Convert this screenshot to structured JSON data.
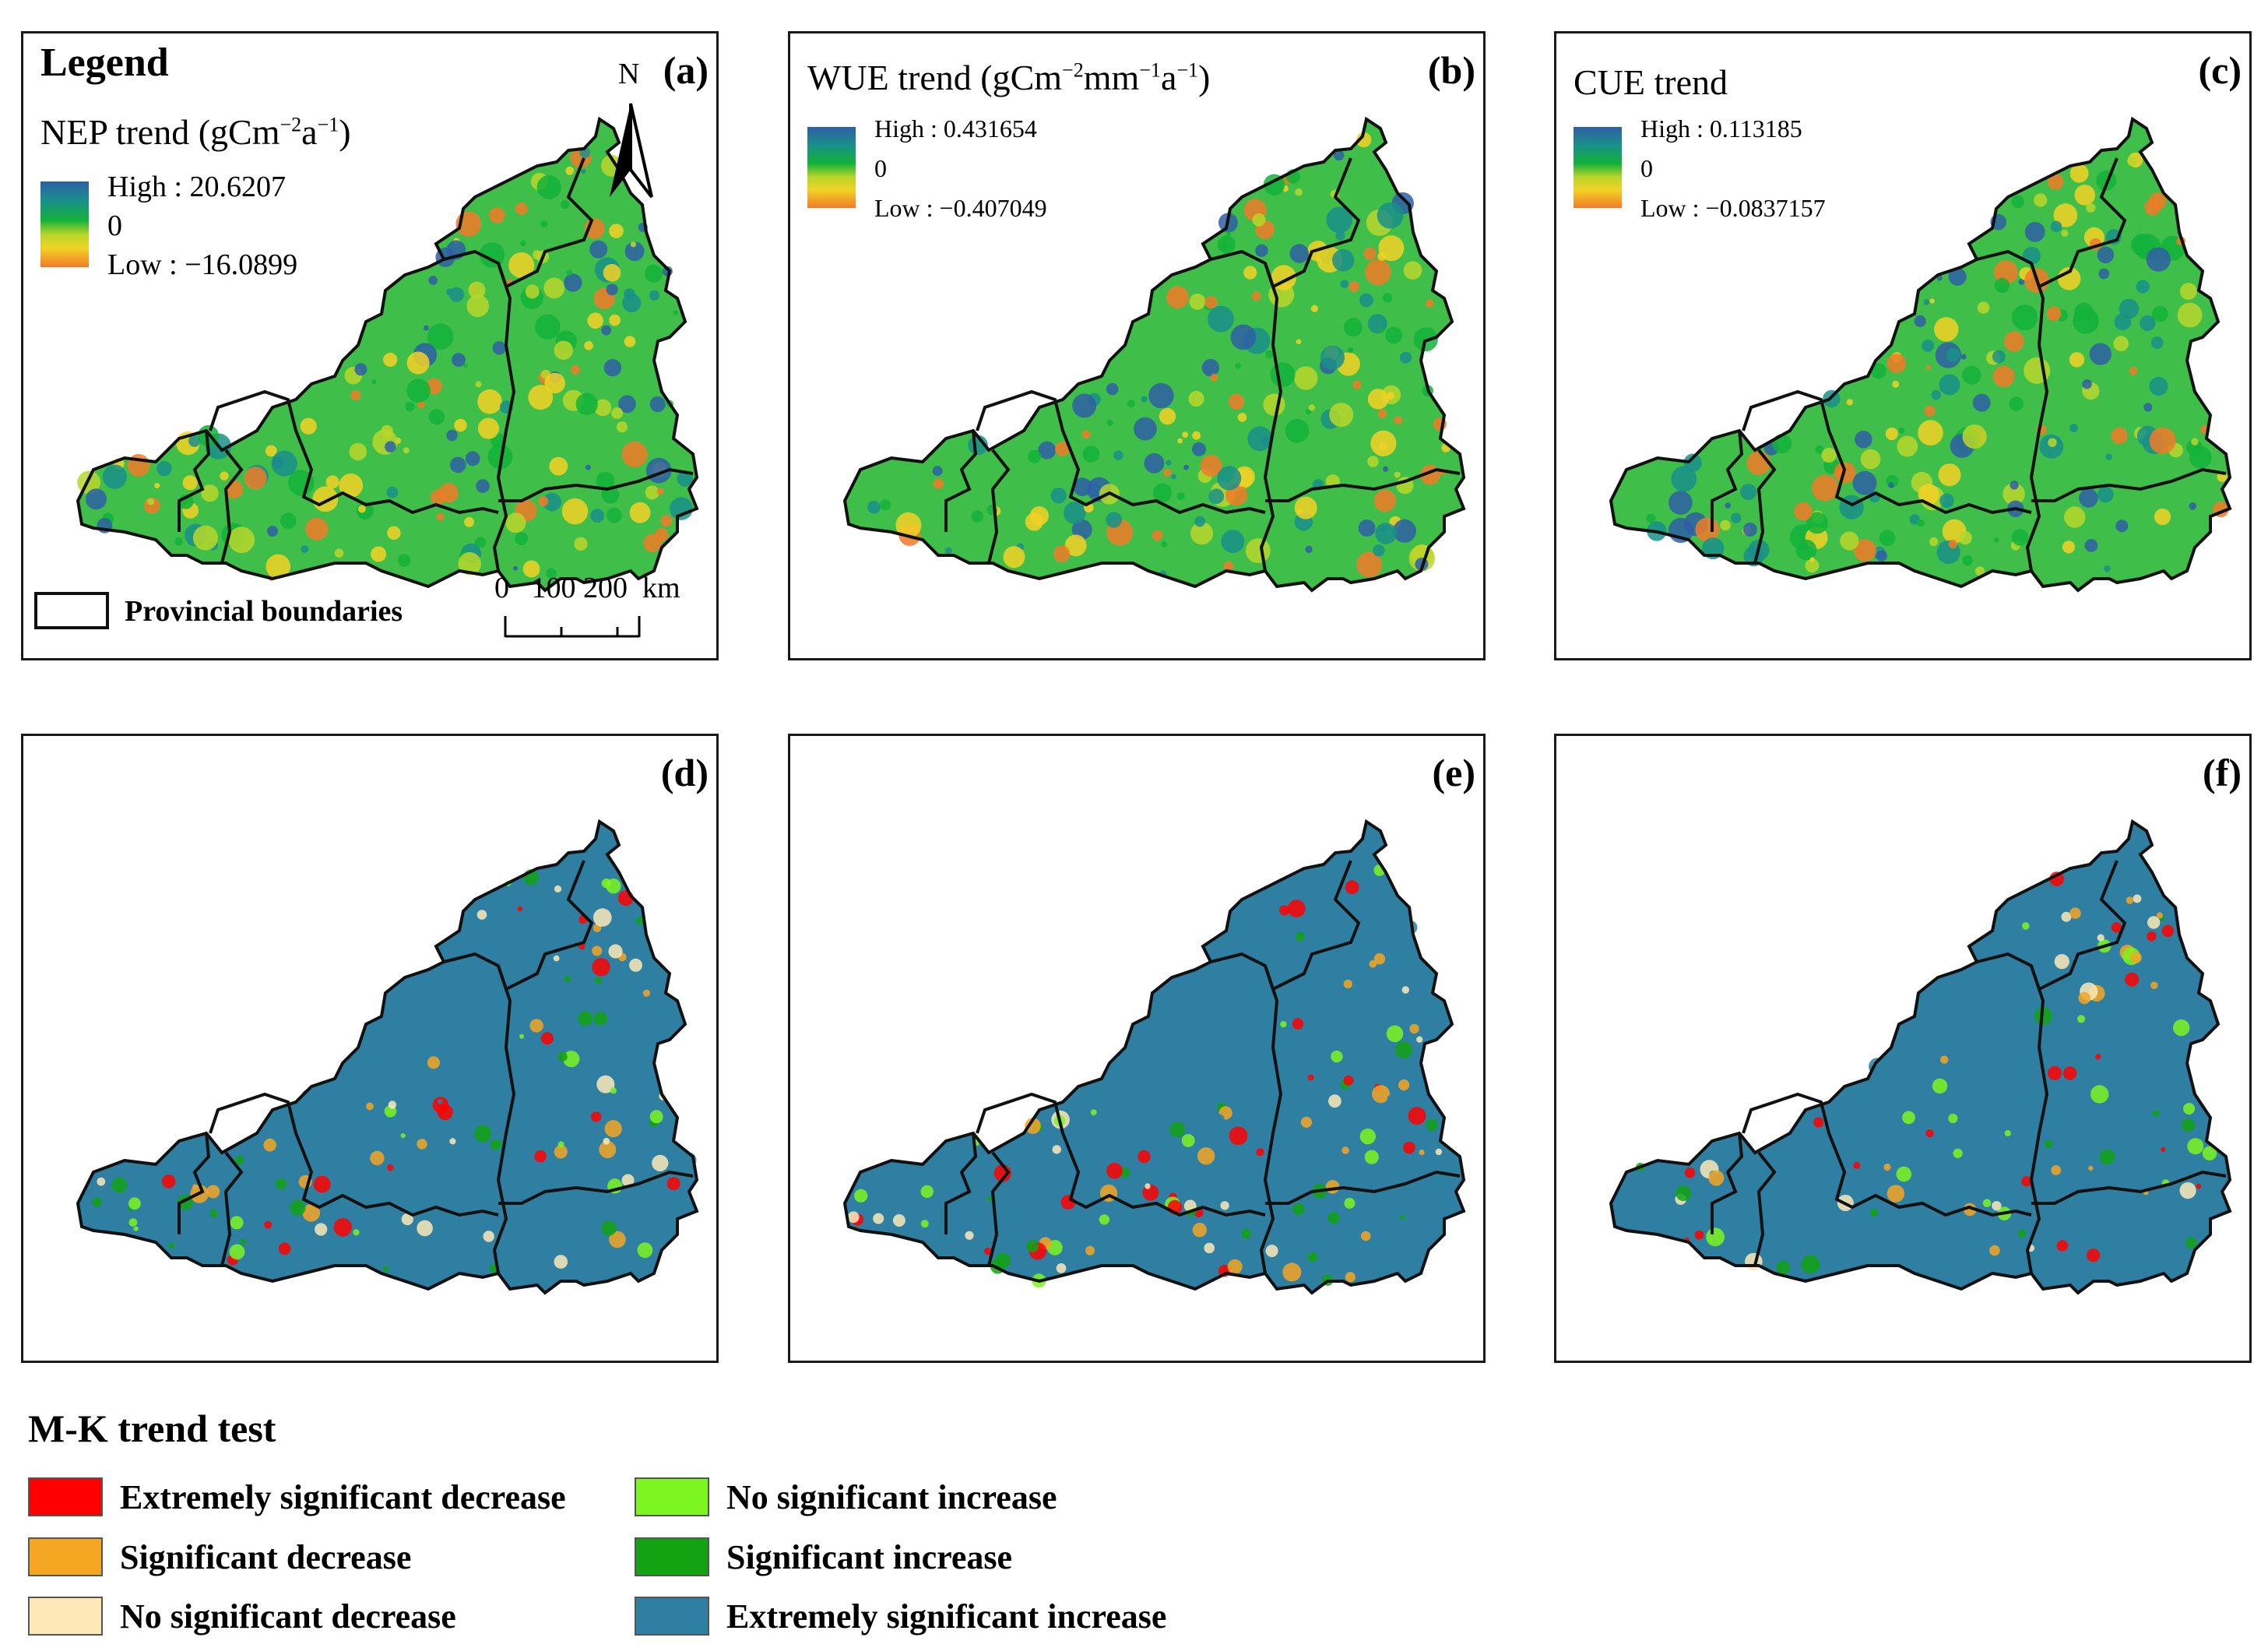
{
  "panels": [
    {
      "id": "a",
      "label": "(a)",
      "style": "gradient"
    },
    {
      "id": "b",
      "label": "(b)",
      "style": "gradient"
    },
    {
      "id": "c",
      "label": "(c)",
      "style": "gradient"
    },
    {
      "id": "d",
      "label": "(d)",
      "style": "mk"
    },
    {
      "id": "e",
      "label": "(e)",
      "style": "mk"
    },
    {
      "id": "f",
      "label": "(f)",
      "style": "mk"
    }
  ],
  "legend": {
    "title": "Legend",
    "north_label": "N",
    "scale_label": "0   100 200  km",
    "boundary_label": "Provincial boundaries"
  },
  "nep": {
    "title_prefix": "NEP trend (gCm",
    "sup1": "−2",
    "mid": "a",
    "sup2": "−1",
    "suffix": ")",
    "high": "High : 20.6207",
    "zero": "0",
    "low": "Low : −16.0899"
  },
  "wue": {
    "title_prefix": "WUE trend (gCm",
    "sup1": "−2",
    "mid1": "mm",
    "sup2": "−1",
    "mid2": "a",
    "sup3": "−1",
    "suffix": ")",
    "high": "High : 0.431654",
    "zero": "0",
    "low": "Low : −0.407049"
  },
  "cue": {
    "title": "CUE trend",
    "high": "High : 0.113185",
    "zero": "0",
    "low": "Low : −0.0837157"
  },
  "mk_legend": {
    "title": "M-K trend test",
    "items": [
      {
        "label": "Extremely significant decrease",
        "color": "#ff0000"
      },
      {
        "label": "Significant decrease",
        "color": "#f5a623"
      },
      {
        "label": "No significant decrease",
        "color": "#fde9b8"
      },
      {
        "label": "No significant increase",
        "color": "#7cf520"
      },
      {
        "label": "Significant increase",
        "color": "#12a212"
      },
      {
        "label": "Extremely significant increase",
        "color": "#2f7fa2"
      }
    ]
  },
  "colors": {
    "ramp_high": "#2e5fa6",
    "ramp_mid": "#13b13a",
    "ramp_low": "#f17a28",
    "boundary": "#111111"
  }
}
